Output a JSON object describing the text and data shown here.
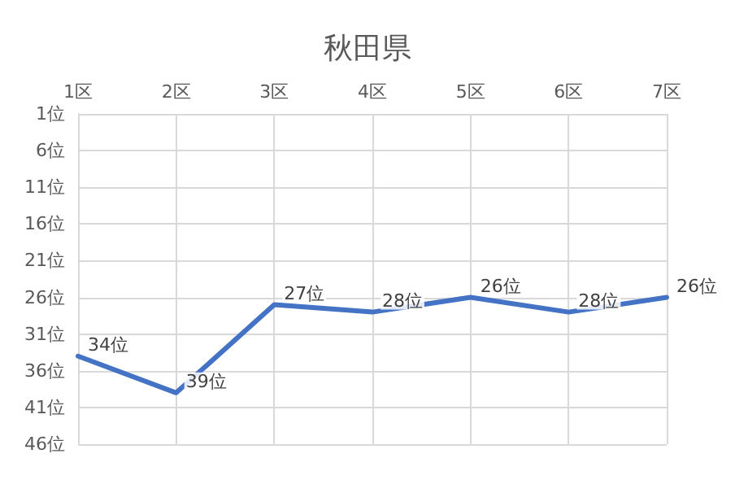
{
  "chart_data": {
    "type": "line",
    "title": "秋田県",
    "categories": [
      "1区",
      "2区",
      "3区",
      "4区",
      "5区",
      "6区",
      "7区"
    ],
    "series": [
      {
        "color": "#4472c4",
        "values": [
          34,
          39,
          27,
          28,
          26,
          28,
          26
        ],
        "value_labels": [
          "34位",
          "39位",
          "27位",
          "28位",
          "26位",
          "28位",
          "26位"
        ]
      }
    ],
    "ylim": [
      46,
      1
    ],
    "yticks": [
      {
        "value": 1,
        "label": "1位"
      },
      {
        "value": 6,
        "label": "6位"
      },
      {
        "value": 11,
        "label": "11位"
      },
      {
        "value": 16,
        "label": "16位"
      },
      {
        "value": 21,
        "label": "21位"
      },
      {
        "value": 26,
        "label": "26位"
      },
      {
        "value": 31,
        "label": "31位"
      },
      {
        "value": 36,
        "label": "36位"
      },
      {
        "value": 41,
        "label": "41位"
      },
      {
        "value": 46,
        "label": "46位"
      }
    ],
    "grid": true,
    "marker": "none",
    "line_style": "solid"
  }
}
